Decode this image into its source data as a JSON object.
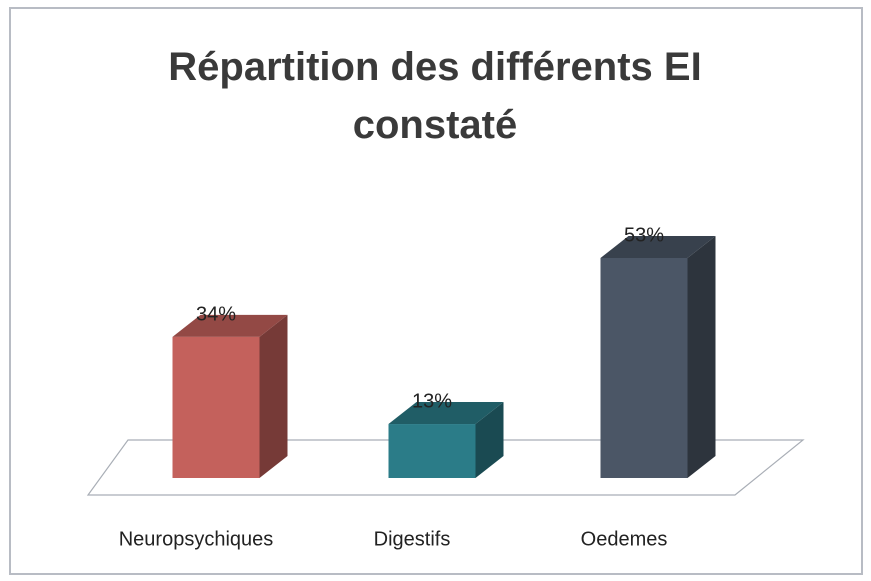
{
  "chart_data": {
    "type": "bar3d",
    "title": "Répartition des différents EI constaté",
    "categories": [
      "Neuropsychiques",
      "Digestifs",
      "Oedemes"
    ],
    "values": [
      34,
      13,
      53
    ],
    "value_labels": [
      "34%",
      "13%",
      "53%"
    ],
    "colors": [
      "#c4615c",
      "#2b7c88",
      "#4b5666"
    ]
  }
}
